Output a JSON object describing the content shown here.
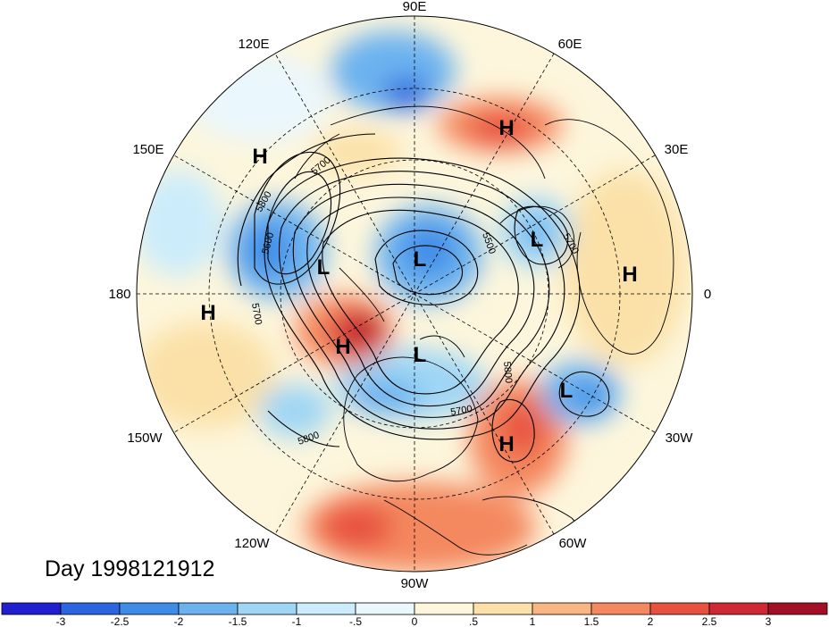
{
  "title": "Day 1998121912",
  "longitude_labels": [
    {
      "name": "lon-90e",
      "text": "90E"
    },
    {
      "name": "lon-60e",
      "text": "60E"
    },
    {
      "name": "lon-30e",
      "text": "30E"
    },
    {
      "name": "lon-0",
      "text": "0"
    },
    {
      "name": "lon-30w",
      "text": "30W"
    },
    {
      "name": "lon-60w",
      "text": "60W"
    },
    {
      "name": "lon-90w",
      "text": "90W"
    },
    {
      "name": "lon-120w",
      "text": "120W"
    },
    {
      "name": "lon-150w",
      "text": "150W"
    },
    {
      "name": "lon-180",
      "text": "180"
    },
    {
      "name": "lon-150e",
      "text": "150E"
    },
    {
      "name": "lon-120e",
      "text": "120E"
    }
  ],
  "pressure_centers": [
    {
      "name": "high-siberia",
      "text": "H"
    },
    {
      "name": "high-kamchatka",
      "text": "H"
    },
    {
      "name": "high-pacific",
      "text": "H"
    },
    {
      "name": "high-alaska",
      "text": "H"
    },
    {
      "name": "high-africa",
      "text": "H"
    },
    {
      "name": "high-atlantic",
      "text": "H"
    },
    {
      "name": "low-pole",
      "text": "L"
    },
    {
      "name": "low-bering",
      "text": "L"
    },
    {
      "name": "low-europe",
      "text": "L"
    },
    {
      "name": "low-canada",
      "text": "L"
    },
    {
      "name": "low-atlantic",
      "text": "L"
    }
  ],
  "contour_labels": [
    {
      "name": "contour-label-5700-a",
      "text": "5700"
    },
    {
      "name": "contour-label-5800-a",
      "text": "5800"
    },
    {
      "name": "contour-label-5600",
      "text": "5600"
    },
    {
      "name": "contour-label-5700-b",
      "text": "5700"
    },
    {
      "name": "contour-label-5500",
      "text": "5500"
    },
    {
      "name": "contour-label-5700-c",
      "text": "5700"
    },
    {
      "name": "contour-label-5800-b",
      "text": "5800"
    },
    {
      "name": "contour-label-5700-d",
      "text": "5700"
    },
    {
      "name": "contour-label-5800-c",
      "text": "5800"
    }
  ],
  "colorbar": {
    "colors": [
      "#1f1fd0",
      "#2b66e0",
      "#3f8ce8",
      "#6cb2ef",
      "#9fd6f5",
      "#ccecfb",
      "#eaf7fd",
      "#fdf6dc",
      "#fbe1a8",
      "#f9b682",
      "#f4885f",
      "#e8513f",
      "#cf2832",
      "#a30f25"
    ],
    "tick_labels": [
      "-3",
      "-2.5",
      "-2",
      "-1.5",
      "-1",
      "-.5",
      "0",
      ".5",
      "1",
      "1.5",
      "2",
      "2.5",
      "3"
    ]
  }
}
